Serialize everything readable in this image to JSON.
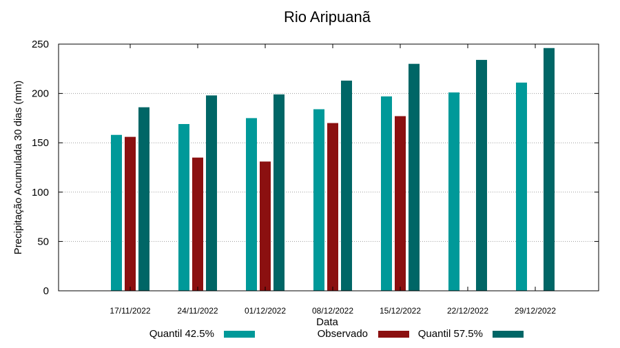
{
  "chart_data": {
    "type": "bar",
    "title": "Rio Aripuanã",
    "xlabel": "Data",
    "ylabel": "Precipitação Acumulada 30 dias (mm)",
    "ylim": [
      0,
      250
    ],
    "yticks": [
      0,
      50,
      100,
      150,
      200,
      250
    ],
    "grid": true,
    "legend_position": "bottom",
    "categories": [
      "17/11/2022",
      "24/11/2022",
      "01/12/2022",
      "08/12/2022",
      "15/12/2022",
      "22/12/2022",
      "29/12/2022"
    ],
    "series": [
      {
        "name": "Quantil 42.5%",
        "color": "#009999",
        "values": [
          158,
          169,
          175,
          184,
          197,
          201,
          211
        ]
      },
      {
        "name": "Observado",
        "color": "#8b1010",
        "values": [
          156,
          135,
          131,
          170,
          177,
          null,
          null
        ]
      },
      {
        "name": "Quantil 57.5%",
        "color": "#006666",
        "values": [
          186,
          198,
          199,
          213,
          230,
          234,
          246
        ]
      }
    ]
  }
}
